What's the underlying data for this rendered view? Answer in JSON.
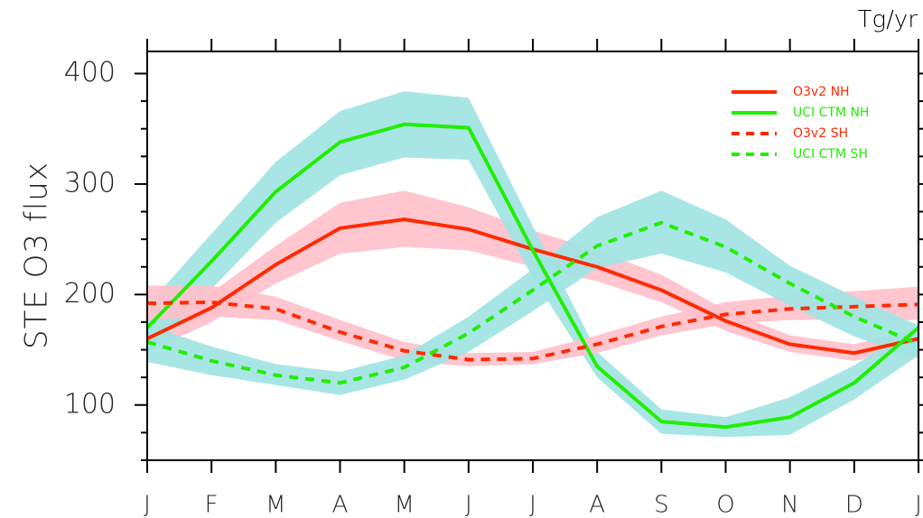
{
  "chart_data": {
    "type": "line",
    "ylabel": "STE O3 flux",
    "units": "Tg/yr",
    "ylim": [
      50,
      420
    ],
    "yticks": [
      100,
      200,
      300,
      400
    ],
    "categories": [
      "J",
      "F",
      "M",
      "A",
      "M",
      "J",
      "J",
      "A",
      "S",
      "O",
      "N",
      "D",
      "J"
    ],
    "grid": false,
    "legend_position": "top-right",
    "series": [
      {
        "name": "O3v2 NH",
        "color": "#ff2a00",
        "dash": "solid",
        "values": [
          160,
          188,
          227,
          260,
          268,
          259,
          241,
          225,
          204,
          176,
          155,
          147,
          160
        ],
        "band_color": "#ffc0cb",
        "band_low": [
          148,
          175,
          210,
          237,
          243,
          240,
          225,
          212,
          193,
          167,
          148,
          140,
          150
        ],
        "band_high": [
          172,
          202,
          244,
          283,
          294,
          279,
          258,
          240,
          218,
          186,
          163,
          155,
          170
        ]
      },
      {
        "name": "UCI CTM NH",
        "color": "#22ee00",
        "dash": "solid",
        "values": [
          170,
          230,
          293,
          338,
          354,
          351,
          240,
          135,
          85,
          80,
          89,
          120,
          170
        ],
        "band_color": "#9fe3e3",
        "band_low": [
          145,
          205,
          265,
          308,
          324,
          322,
          215,
          125,
          74,
          71,
          73,
          105,
          145
        ],
        "band_high": [
          190,
          255,
          320,
          366,
          384,
          378,
          262,
          148,
          96,
          89,
          107,
          136,
          172
        ]
      },
      {
        "name": "O3v2 SH",
        "color": "#ff2a00",
        "dash": "dashed",
        "values": [
          192,
          193,
          187,
          166,
          149,
          141,
          142,
          155,
          171,
          182,
          187,
          189,
          191
        ],
        "band_color": "#ffc0cb",
        "band_low": [
          177,
          180,
          177,
          158,
          140,
          135,
          137,
          147,
          163,
          173,
          177,
          177,
          177
        ],
        "band_high": [
          208,
          208,
          198,
          177,
          157,
          147,
          148,
          163,
          180,
          193,
          199,
          203,
          207
        ]
      },
      {
        "name": "UCI CTM SH",
        "color": "#22ee00",
        "dash": "dashed",
        "values": [
          157,
          140,
          127,
          120,
          134,
          165,
          204,
          244,
          265,
          243,
          210,
          180,
          155
        ],
        "band_color": "#9fe3e3",
        "band_low": [
          139,
          127,
          118,
          109,
          123,
          148,
          185,
          224,
          237,
          220,
          190,
          162,
          142
        ],
        "band_high": [
          172,
          153,
          137,
          130,
          145,
          180,
          223,
          270,
          294,
          268,
          226,
          198,
          172
        ]
      }
    ]
  }
}
